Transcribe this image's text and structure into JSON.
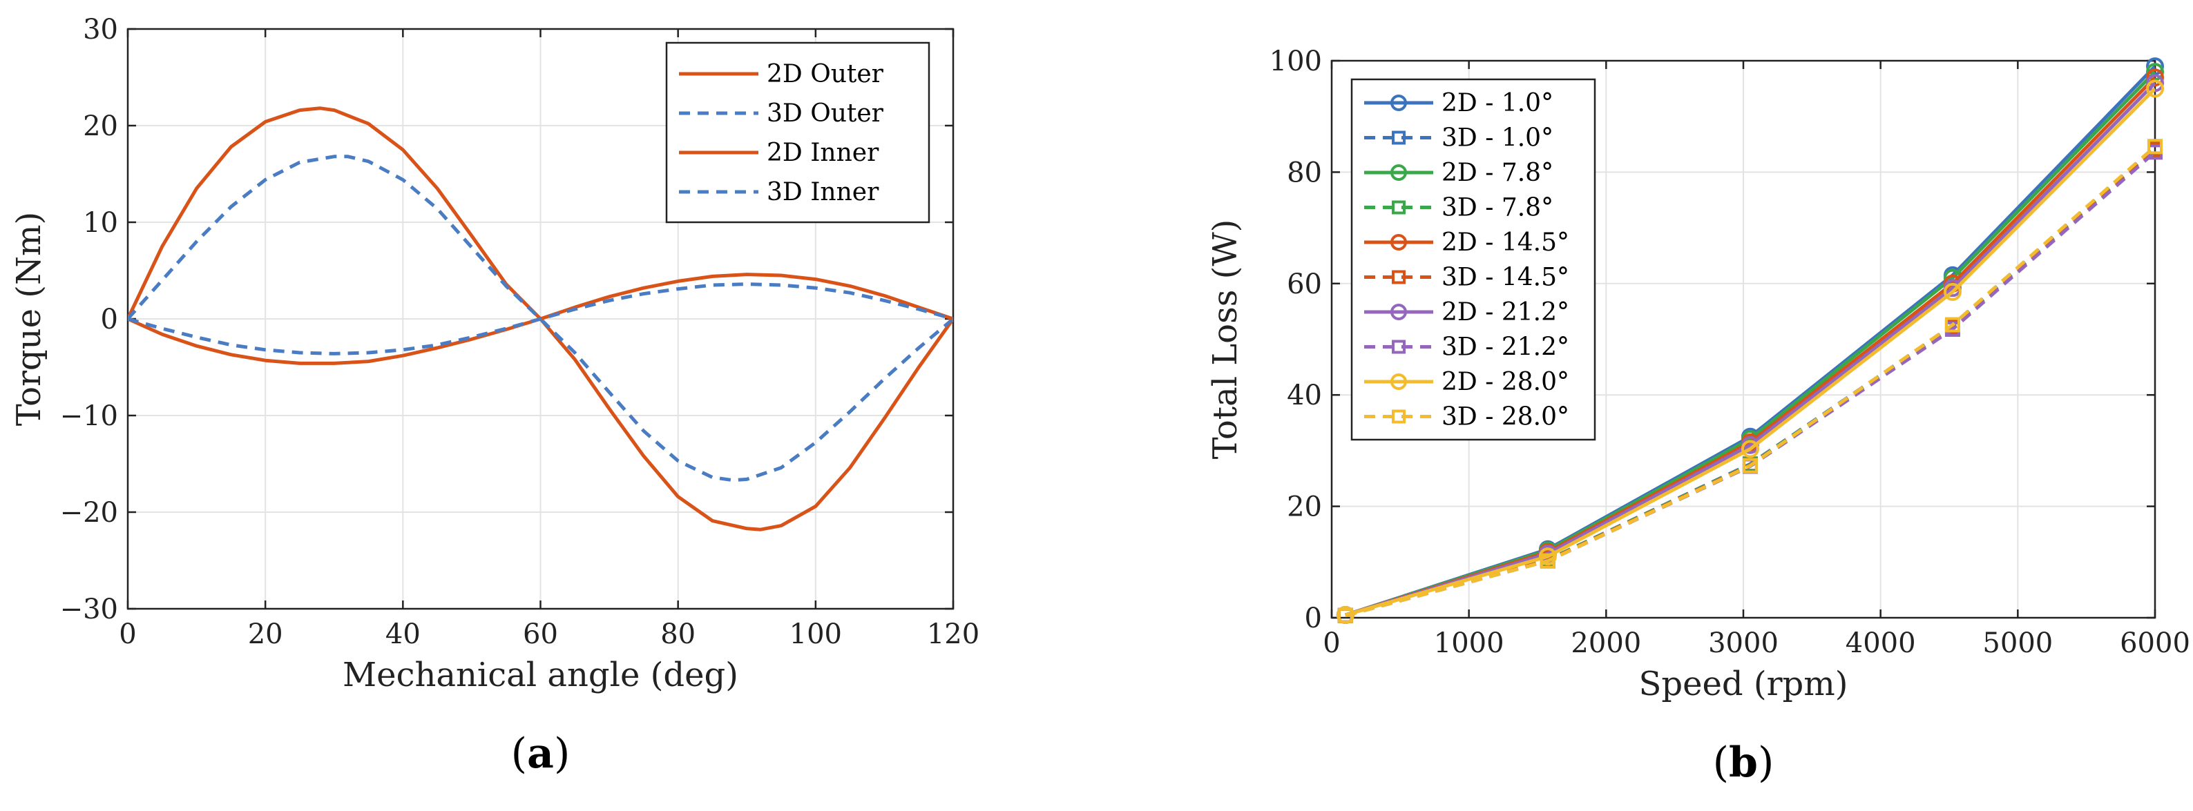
{
  "chart_data": [
    {
      "type": "line",
      "panel_label": "a",
      "xlabel": "Mechanical angle (deg)",
      "ylabel": "Torque (Nm)",
      "xlim": [
        0,
        120
      ],
      "ylim": [
        -30,
        30
      ],
      "xticks": [
        0,
        20,
        40,
        60,
        80,
        100,
        120
      ],
      "yticks": [
        -30,
        -20,
        -10,
        0,
        10,
        20,
        30
      ],
      "xtick_labels": [
        "0",
        "20",
        "40",
        "60",
        "80",
        "100",
        "120"
      ],
      "ytick_labels": [
        "−30",
        "−20",
        "−10",
        "0",
        "10",
        "20",
        "30"
      ],
      "grid": true,
      "legend_position": "top-right",
      "series": [
        {
          "name": "2D Outer",
          "style": "solid",
          "color": "#D95319",
          "x": [
            0,
            5,
            10,
            15,
            20,
            25,
            28,
            30,
            35,
            40,
            45,
            50,
            55,
            60,
            65,
            70,
            75,
            80,
            85,
            90,
            92,
            95,
            100,
            105,
            110,
            115,
            120
          ],
          "y": [
            0,
            7.5,
            13.5,
            17.8,
            20.4,
            21.6,
            21.8,
            21.6,
            20.2,
            17.5,
            13.5,
            8.6,
            3.6,
            0,
            -4.2,
            -9.3,
            -14.2,
            -18.4,
            -20.9,
            -21.7,
            -21.8,
            -21.4,
            -19.4,
            -15.4,
            -10.3,
            -5.0,
            0
          ]
        },
        {
          "name": "3D Outer",
          "style": "dashed",
          "color": "#4A7CC4",
          "x": [
            0,
            5,
            10,
            15,
            20,
            25,
            30,
            32,
            35,
            40,
            45,
            50,
            55,
            60,
            65,
            70,
            75,
            80,
            85,
            88,
            90,
            95,
            100,
            105,
            110,
            115,
            120
          ],
          "y": [
            0,
            4.0,
            8.0,
            11.6,
            14.4,
            16.2,
            16.8,
            16.8,
            16.3,
            14.4,
            11.4,
            7.4,
            3.4,
            0,
            -3.5,
            -7.6,
            -11.6,
            -14.7,
            -16.4,
            -16.7,
            -16.6,
            -15.4,
            -12.8,
            -9.6,
            -6.2,
            -3.0,
            0
          ]
        },
        {
          "name": "2D Inner",
          "style": "solid",
          "color": "#D95319",
          "x": [
            0,
            5,
            10,
            15,
            20,
            25,
            30,
            35,
            40,
            45,
            50,
            55,
            60,
            65,
            70,
            75,
            80,
            85,
            90,
            95,
            100,
            105,
            110,
            115,
            120
          ],
          "y": [
            0,
            -1.6,
            -2.8,
            -3.7,
            -4.3,
            -4.6,
            -4.6,
            -4.4,
            -3.8,
            -3.0,
            -2.1,
            -1.1,
            0,
            1.2,
            2.3,
            3.2,
            3.9,
            4.4,
            4.6,
            4.5,
            4.1,
            3.4,
            2.4,
            1.2,
            0
          ]
        },
        {
          "name": "3D Inner",
          "style": "dashed",
          "color": "#4A7CC4",
          "x": [
            0,
            5,
            10,
            15,
            20,
            25,
            30,
            35,
            40,
            45,
            50,
            55,
            60,
            65,
            70,
            75,
            80,
            85,
            90,
            95,
            100,
            105,
            110,
            115,
            120
          ],
          "y": [
            0,
            -1.0,
            -1.9,
            -2.7,
            -3.2,
            -3.5,
            -3.6,
            -3.5,
            -3.2,
            -2.7,
            -1.9,
            -1.0,
            0,
            1.0,
            1.9,
            2.6,
            3.1,
            3.5,
            3.6,
            3.5,
            3.2,
            2.7,
            1.9,
            1.0,
            0
          ]
        }
      ]
    },
    {
      "type": "line",
      "panel_label": "b",
      "xlabel": "Speed (rpm)",
      "ylabel": "Total Loss (W)",
      "xlim": [
        0,
        6000
      ],
      "ylim": [
        0,
        100
      ],
      "xticks": [
        0,
        1000,
        2000,
        3000,
        4000,
        5000,
        6000
      ],
      "yticks": [
        0,
        20,
        40,
        60,
        80,
        100
      ],
      "xtick_labels": [
        "0",
        "1000",
        "2000",
        "3000",
        "4000",
        "5000",
        "6000"
      ],
      "ytick_labels": [
        "0",
        "20",
        "40",
        "60",
        "80",
        "100"
      ],
      "grid": true,
      "legend_position": "top-left",
      "x": [
        100,
        1575,
        3050,
        4525,
        6000
      ],
      "series": [
        {
          "name": "2D - 1.0°",
          "style": "solid",
          "marker": "circle",
          "color": "#3B73BD",
          "y": [
            0.5,
            12.3,
            32.5,
            61.5,
            99.0
          ]
        },
        {
          "name": "3D - 1.0°",
          "style": "dashed",
          "marker": "square",
          "color": "#3B73BD",
          "y": [
            0.4,
            10.4,
            27.6,
            52.4,
            84.4
          ]
        },
        {
          "name": "2D - 7.8°",
          "style": "solid",
          "marker": "circle",
          "color": "#3AA84A",
          "y": [
            0.5,
            12.1,
            32.1,
            61.0,
            98.0
          ]
        },
        {
          "name": "3D - 7.8°",
          "style": "dashed",
          "marker": "square",
          "color": "#3AA84A",
          "y": [
            0.4,
            10.4,
            27.5,
            52.3,
            84.2
          ]
        },
        {
          "name": "2D - 14.5°",
          "style": "solid",
          "marker": "circle",
          "color": "#D95319",
          "y": [
            0.5,
            11.8,
            31.5,
            60.0,
            97.0
          ]
        },
        {
          "name": "3D - 14.5°",
          "style": "dashed",
          "marker": "square",
          "color": "#D95319",
          "y": [
            0.4,
            10.3,
            27.4,
            52.1,
            84.0
          ]
        },
        {
          "name": "2D - 21.2°",
          "style": "solid",
          "marker": "circle",
          "color": "#9467BD",
          "y": [
            0.5,
            11.5,
            31.0,
            59.2,
            96.0
          ]
        },
        {
          "name": "3D - 21.2°",
          "style": "dashed",
          "marker": "square",
          "color": "#9467BD",
          "y": [
            0.4,
            10.2,
            27.2,
            51.8,
            83.6
          ]
        },
        {
          "name": "2D - 28.0°",
          "style": "solid",
          "marker": "circle",
          "color": "#F2BC2E",
          "y": [
            0.5,
            11.0,
            30.3,
            58.5,
            95.0
          ]
        },
        {
          "name": "3D - 28.0°",
          "style": "dashed",
          "marker": "square",
          "color": "#F2BC2E",
          "y": [
            0.4,
            10.2,
            27.3,
            52.6,
            84.6
          ]
        }
      ]
    }
  ]
}
